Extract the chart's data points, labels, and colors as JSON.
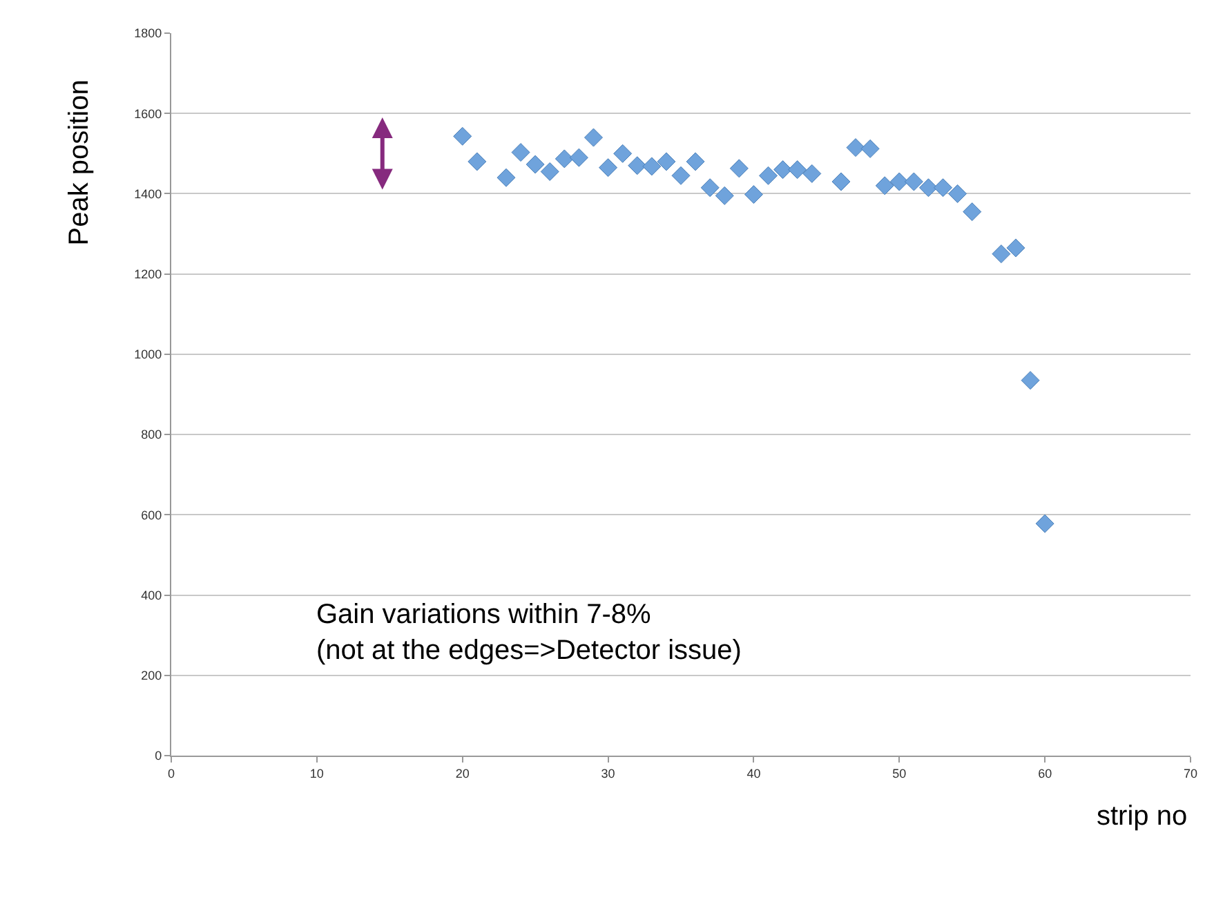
{
  "chart_data": {
    "type": "scatter",
    "xlabel": "strip no",
    "ylabel": "Peak position",
    "x": [
      20,
      21,
      23,
      24,
      25,
      26,
      27,
      28,
      29,
      30,
      31,
      32,
      33,
      34,
      35,
      36,
      37,
      38,
      39,
      40,
      41,
      42,
      43,
      44,
      46,
      47,
      48,
      49,
      50,
      51,
      52,
      53,
      54,
      55,
      57,
      58,
      59,
      60
    ],
    "series": [
      {
        "color": "#6fa3dc",
        "values": [
          1543,
          1480,
          1440,
          1503,
          1473,
          1455,
          1487,
          1490,
          1540,
          1465,
          1500,
          1470,
          1468,
          1480,
          1445,
          1480,
          1415,
          1395,
          1463,
          1398,
          1445,
          1460,
          1460,
          1450,
          1430,
          1515,
          1512,
          1420,
          1430,
          1430,
          1415,
          1415,
          1400,
          1355,
          1250,
          1265,
          935,
          578
        ]
      }
    ],
    "xlim": [
      0,
      70
    ],
    "xticks": [
      0,
      10,
      20,
      30,
      40,
      50,
      60,
      70
    ],
    "ylim": [
      0,
      1800
    ],
    "yticks": [
      0,
      200,
      400,
      600,
      800,
      1000,
      1200,
      1400,
      1600,
      1800
    ],
    "grid": "y",
    "marker": "diamond",
    "annotations": [
      "Gain variations within 7-8%\n(not at the edges=>Detector issue)"
    ]
  }
}
